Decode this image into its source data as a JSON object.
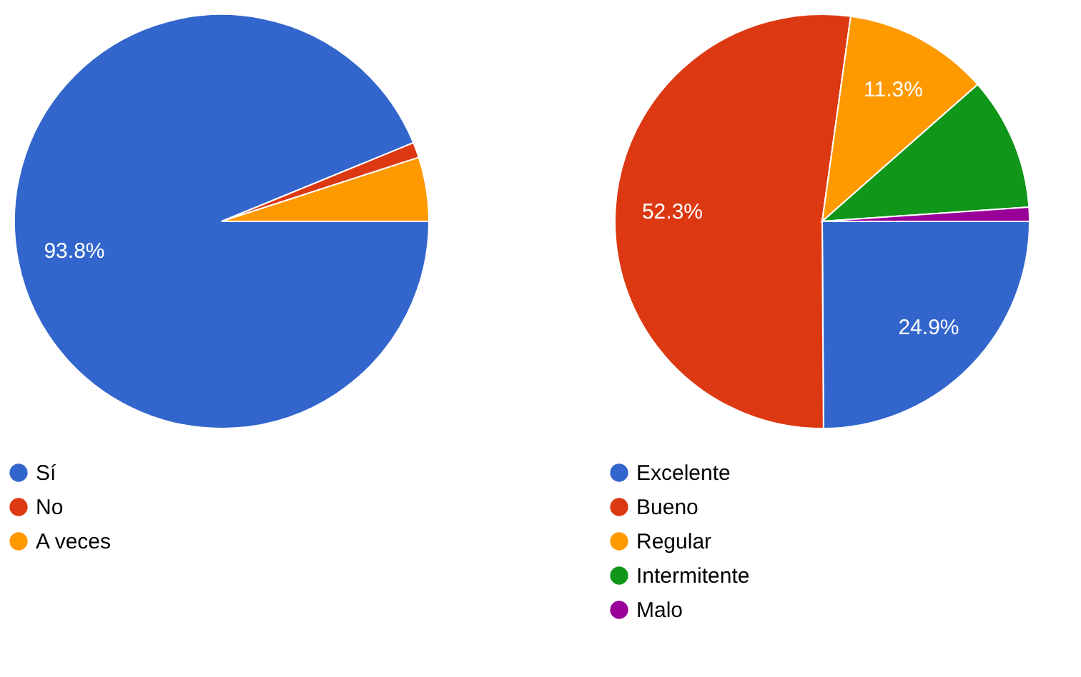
{
  "chart_data": [
    {
      "type": "pie",
      "categories": [
        "Sí",
        "No",
        "A veces"
      ],
      "values": [
        93.8,
        1.2,
        5.0
      ],
      "colors": [
        "#3366cc",
        "#dc3912",
        "#ff9900"
      ],
      "value_labels": [
        "93.8%",
        null,
        null
      ],
      "legend": "bottom"
    },
    {
      "type": "pie",
      "categories": [
        "Excelente",
        "Bueno",
        "Regular",
        "Intermitente",
        "Malo"
      ],
      "values": [
        24.9,
        52.3,
        11.3,
        10.4,
        1.1
      ],
      "colors": [
        "#3366cc",
        "#dc3912",
        "#ff9900",
        "#109618",
        "#990099"
      ],
      "value_labels": [
        "24.9%",
        "52.3%",
        "11.3%",
        null,
        null
      ],
      "legend": "bottom"
    }
  ]
}
